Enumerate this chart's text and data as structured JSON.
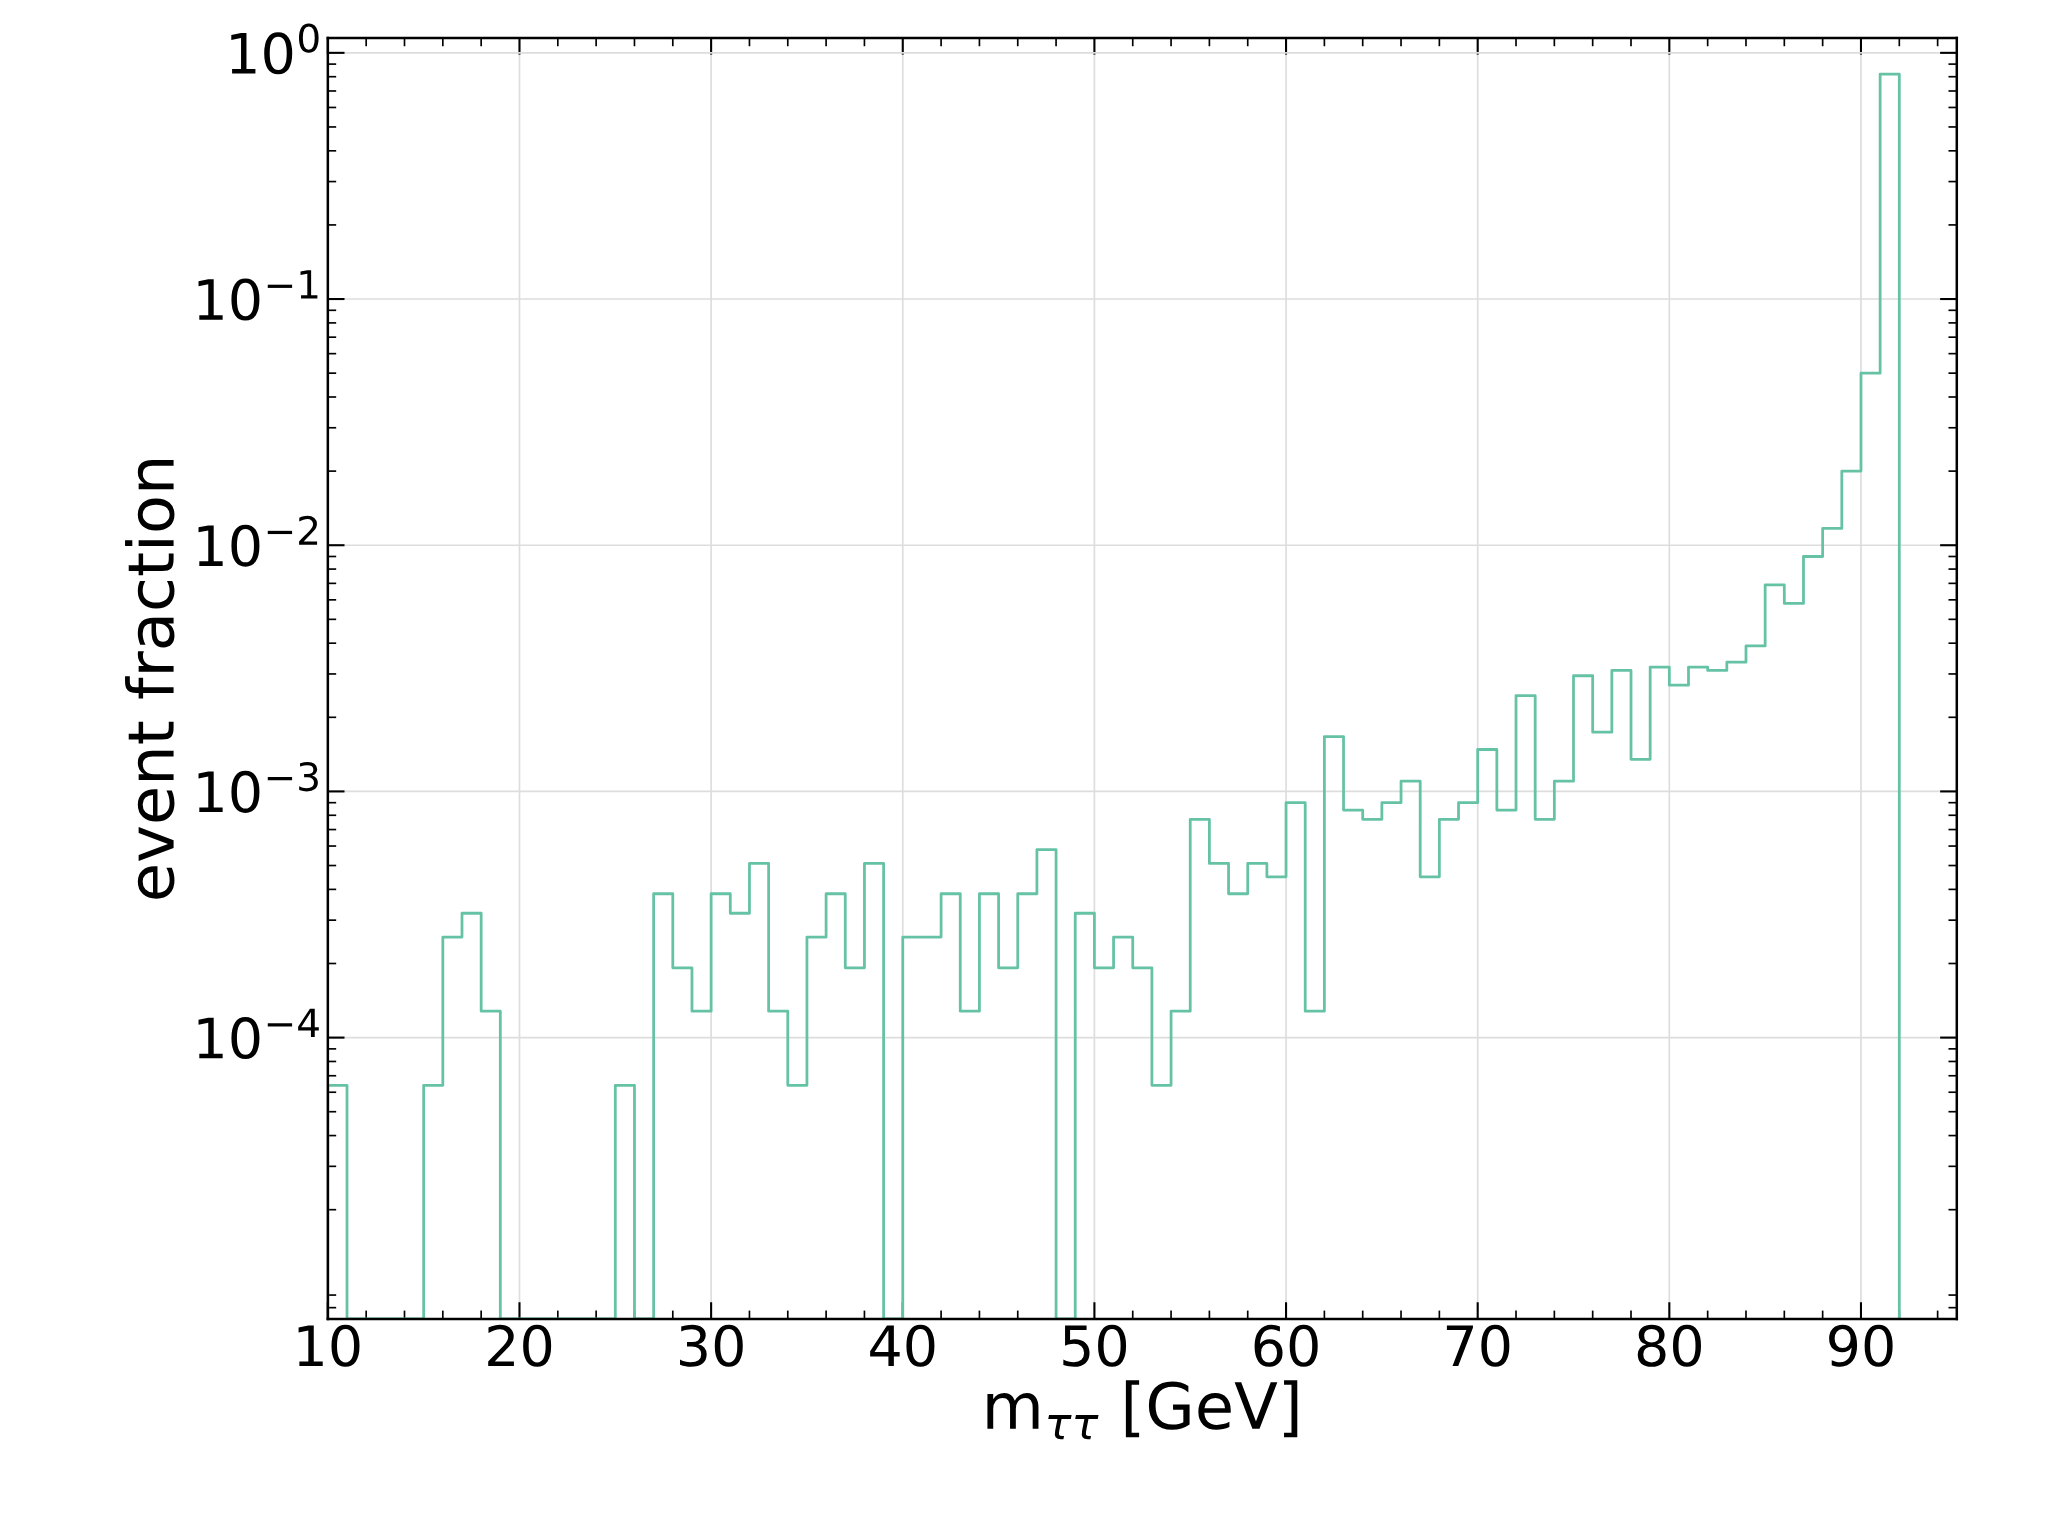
{
  "chart_data": {
    "type": "histogram",
    "xlabel": "m$_{ττ}$ [GeV]",
    "ylabel": "event fraction",
    "color": "#66c2a5",
    "log": "y",
    "grid": true,
    "bins": [
      10,
      11,
      12,
      13,
      14,
      15,
      16,
      17,
      18,
      19,
      20,
      21,
      22,
      23,
      24,
      25,
      26,
      27,
      28,
      29,
      30,
      31,
      32,
      33,
      34,
      35,
      36,
      37,
      38,
      39,
      40,
      41,
      42,
      43,
      44,
      45,
      46,
      47,
      48,
      49,
      50,
      51,
      52,
      53,
      54,
      55,
      56,
      57,
      58,
      59,
      60,
      61,
      62,
      63,
      64,
      65,
      66,
      67,
      68,
      69,
      70,
      71,
      72,
      73,
      74,
      75,
      76,
      77,
      78,
      79,
      80,
      81,
      82,
      83,
      84,
      85,
      86,
      87,
      88,
      89,
      90,
      91,
      92
    ],
    "values": [
      6.4e-05,
      null,
      null,
      null,
      null,
      6.4e-05,
      0.000256,
      0.00032,
      0.000128,
      null,
      null,
      null,
      null,
      null,
      null,
      6.4e-05,
      null,
      0.000384,
      0.000192,
      0.000128,
      0.000384,
      0.00032,
      0.00051,
      0.000128,
      6.4e-05,
      0.000256,
      0.000384,
      0.000192,
      0.00051,
      null,
      0.000256,
      0.000256,
      0.000384,
      0.000128,
      0.000384,
      0.000192,
      0.000384,
      0.00058,
      null,
      0.00032,
      0.000192,
      0.000256,
      0.000192,
      6.4e-05,
      0.000128,
      0.00077,
      0.00051,
      0.000384,
      0.00051,
      0.00045,
      0.0009,
      0.000128,
      0.00167,
      0.00084,
      0.00077,
      0.0009,
      0.0011,
      0.00045,
      0.00077,
      0.0009,
      0.00148,
      0.00084,
      0.00245,
      0.00077,
      0.0011,
      0.00295,
      0.00174,
      0.0031,
      0.00135,
      0.0032,
      0.0027,
      0.0032,
      0.0031,
      0.00335,
      0.0039,
      0.0069,
      0.0058,
      0.009,
      0.0117,
      0.02,
      0.05,
      0.82
    ],
    "xlim": [
      10,
      95
    ],
    "xticks": [
      10,
      20,
      30,
      40,
      50,
      60,
      70,
      80,
      90
    ],
    "ylim": [
      7.2e-06,
      1.15
    ],
    "yticks": [
      {
        "value": 0.0001,
        "label": "10$^{−4}$"
      },
      {
        "value": 0.001,
        "label": "10$^{−3}$"
      },
      {
        "value": 0.01,
        "label": "10$^{−2}$"
      },
      {
        "value": 0.1,
        "label": "10$^{−1}$"
      },
      {
        "value": 1,
        "label": "10$^{0}$"
      }
    ]
  }
}
